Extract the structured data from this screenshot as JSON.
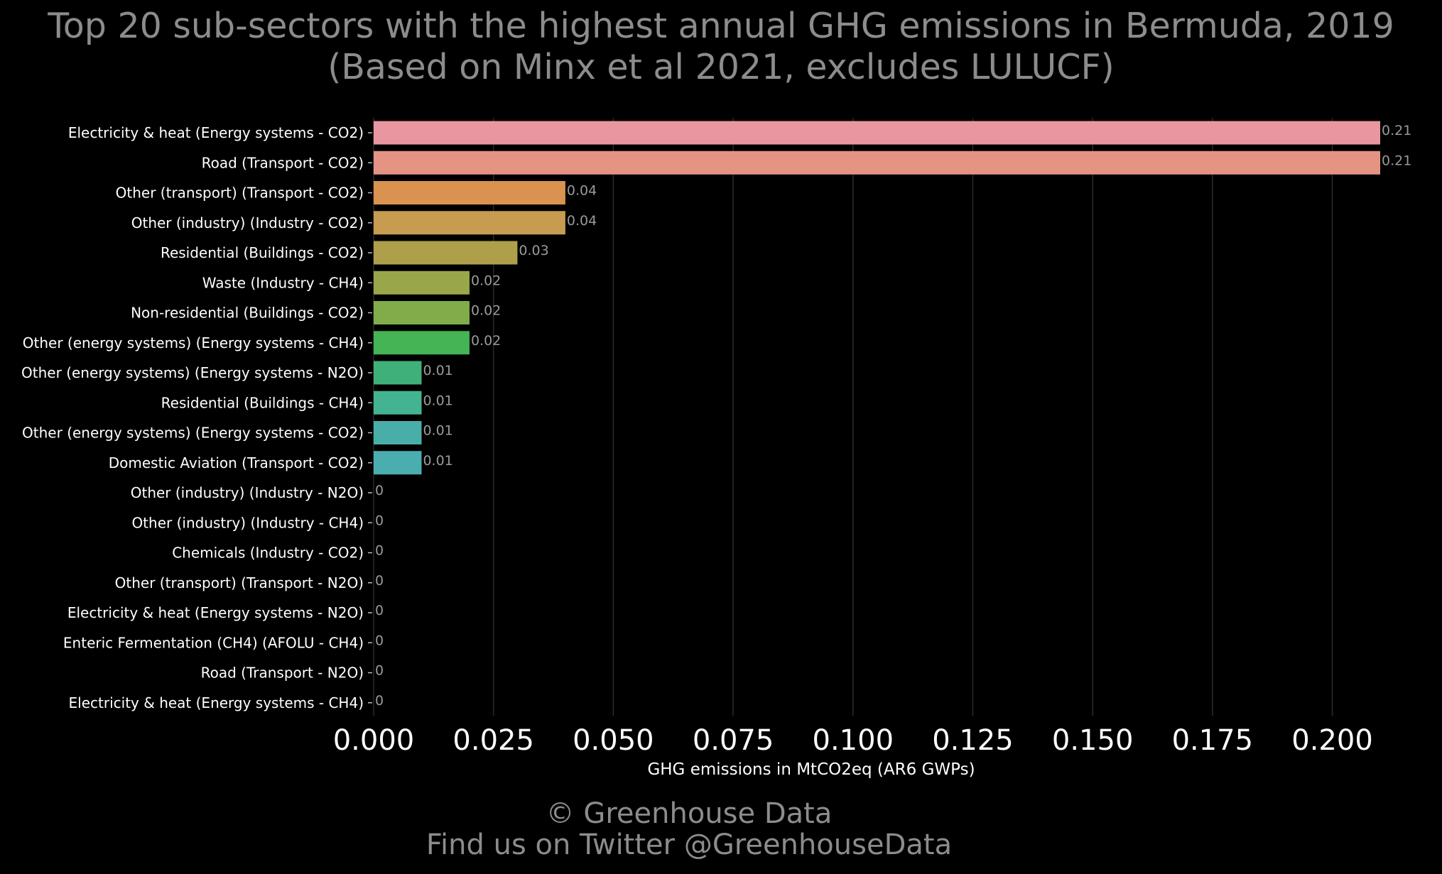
{
  "title": {
    "line1": "Top 20 sub-sectors with the highest annual GHG emissions in Bermuda, 2019",
    "line2": "(Based on Minx et al 2021, excludes LULUCF)"
  },
  "footer": {
    "line1": "© Greenhouse Data",
    "line2": "Find us on Twitter @GreenhouseData"
  },
  "chart_data": {
    "type": "bar",
    "orientation": "horizontal",
    "title": "Top 20 sub-sectors with the highest annual GHG emissions in Bermuda, 2019",
    "subtitle": "(Based on Minx et al 2021, excludes LULUCF)",
    "xlabel": "GHG emissions in MtCO2eq (AR6 GWPs)",
    "ylabel": "",
    "xlim": [
      0,
      0.21
    ],
    "xticks": [
      "0.000",
      "0.025",
      "0.050",
      "0.075",
      "0.100",
      "0.125",
      "0.150",
      "0.175",
      "0.200"
    ],
    "xtick_values": [
      0,
      0.025,
      0.05,
      0.075,
      0.1,
      0.125,
      0.15,
      0.175,
      0.2
    ],
    "grid": "vertical",
    "categories": [
      "Electricity & heat (Energy systems - CO2)",
      "Road (Transport - CO2)",
      "Other (transport) (Transport - CO2)",
      "Other (industry) (Industry - CO2)",
      "Residential (Buildings - CO2)",
      "Waste (Industry - CH4)",
      "Non-residential (Buildings - CO2)",
      "Other (energy systems) (Energy systems - CH4)",
      "Other (energy systems) (Energy systems - N2O)",
      "Residential (Buildings - CH4)",
      "Other (energy systems) (Energy systems - CO2)",
      "Domestic Aviation (Transport - CO2)",
      "Other (industry) (Industry - N2O)",
      "Other (industry) (Industry - CH4)",
      "Chemicals (Industry - CO2)",
      "Other (transport) (Transport - N2O)",
      "Electricity & heat (Energy systems - N2O)",
      "Enteric Fermentation (CH4) (AFOLU - CH4)",
      "Road (Transport - N2O)",
      "Electricity & heat (Energy systems - CH4)"
    ],
    "values": [
      0.21,
      0.21,
      0.04,
      0.04,
      0.03,
      0.02,
      0.02,
      0.02,
      0.01,
      0.01,
      0.01,
      0.01,
      0,
      0,
      0,
      0,
      0,
      0,
      0,
      0
    ],
    "data_labels": [
      "0.21",
      "0.21",
      "0.04",
      "0.04",
      "0.03",
      "0.02",
      "0.02",
      "0.02",
      "0.01",
      "0.01",
      "0.01",
      "0.01",
      "0",
      "0",
      "0",
      "0",
      "0",
      "0",
      "0",
      "0"
    ],
    "colors": [
      "#e8969f",
      "#e59383",
      "#d9924f",
      "#c79c50",
      "#aea04a",
      "#9aa64a",
      "#80ad4a",
      "#44b455",
      "#40b07a",
      "#44b391",
      "#4aaea8",
      "#4aaeb0",
      "#4ab2b8",
      "#4ab2c0",
      "#4aa9cc",
      "#6a9fdc",
      "#8c94e4",
      "#b089e4",
      "#d183d6",
      "#e68ac0"
    ]
  }
}
